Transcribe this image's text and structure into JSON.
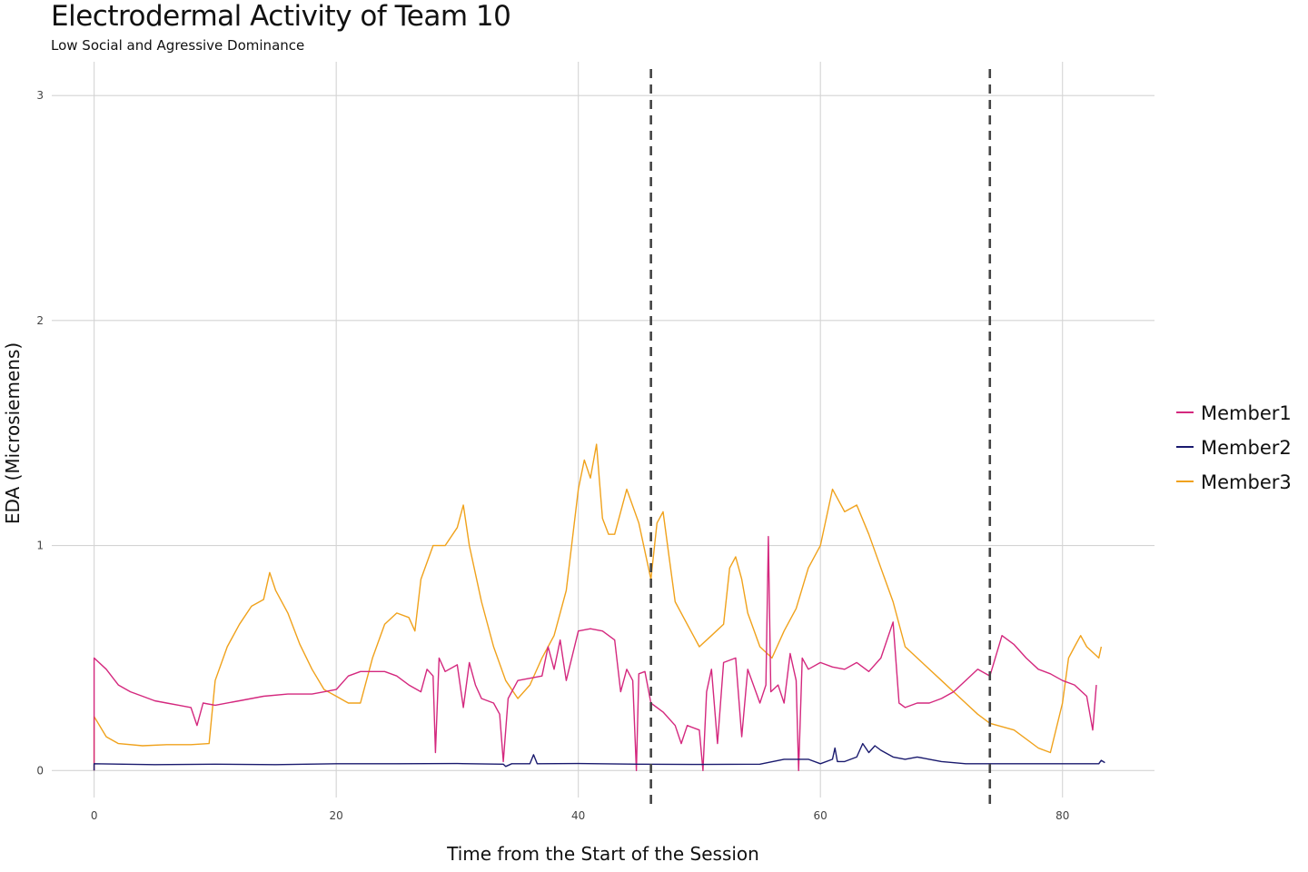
{
  "chart_data": {
    "type": "line",
    "title": "Electrodermal Activity of Team 10",
    "subtitle": "Low Social and Agressive Dominance",
    "xlabel": "Time from the Start of the Session",
    "ylabel": "EDA (Microsiemens)",
    "xlim": [
      -3.5,
      87.6
    ],
    "ylim": [
      -0.12,
      3.15
    ],
    "x_ticks": [
      0,
      20,
      40,
      60,
      80
    ],
    "y_ticks": [
      0,
      1,
      2,
      3
    ],
    "grid": true,
    "legend_position": "right",
    "vlines": [
      46,
      74
    ],
    "series": [
      {
        "name": "Member1",
        "color": "#d4287e",
        "points": [
          [
            0,
            0
          ],
          [
            0,
            0.5
          ],
          [
            1,
            0.45
          ],
          [
            2,
            0.38
          ],
          [
            3,
            0.35
          ],
          [
            4,
            0.33
          ],
          [
            5,
            0.31
          ],
          [
            6,
            0.3
          ],
          [
            7,
            0.29
          ],
          [
            8,
            0.28
          ],
          [
            8.5,
            0.2
          ],
          [
            9,
            0.3
          ],
          [
            10,
            0.29
          ],
          [
            12,
            0.31
          ],
          [
            14,
            0.33
          ],
          [
            16,
            0.34
          ],
          [
            18,
            0.34
          ],
          [
            20,
            0.36
          ],
          [
            21,
            0.42
          ],
          [
            22,
            0.44
          ],
          [
            24,
            0.44
          ],
          [
            25,
            0.42
          ],
          [
            25.5,
            0.4
          ],
          [
            26,
            0.38
          ],
          [
            27,
            0.35
          ],
          [
            27.5,
            0.45
          ],
          [
            28,
            0.42
          ],
          [
            28.2,
            0.08
          ],
          [
            28.5,
            0.5
          ],
          [
            29,
            0.44
          ],
          [
            30,
            0.47
          ],
          [
            30.5,
            0.28
          ],
          [
            31,
            0.48
          ],
          [
            31.5,
            0.38
          ],
          [
            32,
            0.32
          ],
          [
            33,
            0.3
          ],
          [
            33.5,
            0.25
          ],
          [
            33.8,
            0.04
          ],
          [
            34.2,
            0.32
          ],
          [
            35,
            0.4
          ],
          [
            36,
            0.41
          ],
          [
            37,
            0.42
          ],
          [
            37.5,
            0.55
          ],
          [
            38,
            0.45
          ],
          [
            38.5,
            0.58
          ],
          [
            39,
            0.4
          ],
          [
            40,
            0.62
          ],
          [
            41,
            0.63
          ],
          [
            42,
            0.62
          ],
          [
            43,
            0.58
          ],
          [
            43.5,
            0.35
          ],
          [
            44,
            0.45
          ],
          [
            44.5,
            0.4
          ],
          [
            44.8,
            0.0
          ],
          [
            45,
            0.43
          ],
          [
            45.5,
            0.44
          ],
          [
            46,
            0.3
          ],
          [
            47,
            0.26
          ],
          [
            48,
            0.2
          ],
          [
            48.5,
            0.12
          ],
          [
            49,
            0.2
          ],
          [
            50,
            0.18
          ],
          [
            50.3,
            0.0
          ],
          [
            50.6,
            0.35
          ],
          [
            51,
            0.45
          ],
          [
            51.5,
            0.12
          ],
          [
            52,
            0.48
          ],
          [
            53,
            0.5
          ],
          [
            53.5,
            0.15
          ],
          [
            54,
            0.45
          ],
          [
            55,
            0.3
          ],
          [
            55.5,
            0.38
          ],
          [
            55.7,
            1.04
          ],
          [
            55.9,
            0.35
          ],
          [
            56.5,
            0.38
          ],
          [
            57,
            0.3
          ],
          [
            57.5,
            0.52
          ],
          [
            58,
            0.4
          ],
          [
            58.2,
            0.0
          ],
          [
            58.5,
            0.5
          ],
          [
            59,
            0.45
          ],
          [
            60,
            0.48
          ],
          [
            61,
            0.46
          ],
          [
            62,
            0.45
          ],
          [
            63,
            0.48
          ],
          [
            64,
            0.44
          ],
          [
            65,
            0.5
          ],
          [
            66,
            0.66
          ],
          [
            66.5,
            0.3
          ],
          [
            67,
            0.28
          ],
          [
            68,
            0.3
          ],
          [
            69,
            0.3
          ],
          [
            70,
            0.32
          ],
          [
            71,
            0.35
          ],
          [
            72,
            0.4
          ],
          [
            73,
            0.45
          ],
          [
            74,
            0.42
          ],
          [
            75,
            0.6
          ],
          [
            76,
            0.56
          ],
          [
            77,
            0.5
          ],
          [
            78,
            0.45
          ],
          [
            79,
            0.43
          ],
          [
            80,
            0.4
          ],
          [
            81,
            0.38
          ],
          [
            82,
            0.33
          ],
          [
            82.5,
            0.18
          ],
          [
            82.8,
            0.38
          ]
        ]
      },
      {
        "name": "Member2",
        "color": "#1a1a6e",
        "points": [
          [
            0,
            0
          ],
          [
            0,
            0.03
          ],
          [
            5,
            0.026
          ],
          [
            10,
            0.028
          ],
          [
            15,
            0.026
          ],
          [
            20,
            0.03
          ],
          [
            25,
            0.03
          ],
          [
            30,
            0.031
          ],
          [
            33.8,
            0.028
          ],
          [
            34,
            0.018
          ],
          [
            34.5,
            0.03
          ],
          [
            36,
            0.03
          ],
          [
            36.3,
            0.07
          ],
          [
            36.6,
            0.03
          ],
          [
            40,
            0.031
          ],
          [
            45,
            0.028
          ],
          [
            50,
            0.027
          ],
          [
            55,
            0.028
          ],
          [
            57,
            0.05
          ],
          [
            59,
            0.05
          ],
          [
            60,
            0.03
          ],
          [
            61,
            0.05
          ],
          [
            61.2,
            0.1
          ],
          [
            61.4,
            0.04
          ],
          [
            62,
            0.04
          ],
          [
            63,
            0.06
          ],
          [
            63.5,
            0.12
          ],
          [
            64,
            0.08
          ],
          [
            64.5,
            0.11
          ],
          [
            65,
            0.09
          ],
          [
            66,
            0.06
          ],
          [
            67,
            0.05
          ],
          [
            68,
            0.06
          ],
          [
            69,
            0.05
          ],
          [
            70,
            0.04
          ],
          [
            72,
            0.03
          ],
          [
            75,
            0.03
          ],
          [
            80,
            0.03
          ],
          [
            83,
            0.03
          ],
          [
            83.2,
            0.045
          ],
          [
            83.5,
            0.035
          ]
        ]
      },
      {
        "name": "Member3",
        "color": "#f0a21c",
        "points": [
          [
            0,
            0
          ],
          [
            0,
            0.24
          ],
          [
            1,
            0.15
          ],
          [
            2,
            0.12
          ],
          [
            4,
            0.11
          ],
          [
            6,
            0.115
          ],
          [
            8,
            0.115
          ],
          [
            9.5,
            0.12
          ],
          [
            10,
            0.4
          ],
          [
            11,
            0.55
          ],
          [
            12,
            0.65
          ],
          [
            13,
            0.73
          ],
          [
            14,
            0.76
          ],
          [
            14.5,
            0.88
          ],
          [
            15,
            0.8
          ],
          [
            16,
            0.7
          ],
          [
            17,
            0.56
          ],
          [
            18,
            0.45
          ],
          [
            19,
            0.36
          ],
          [
            20,
            0.33
          ],
          [
            21,
            0.3
          ],
          [
            22,
            0.3
          ],
          [
            23,
            0.5
          ],
          [
            24,
            0.65
          ],
          [
            25,
            0.7
          ],
          [
            26,
            0.68
          ],
          [
            26.5,
            0.62
          ],
          [
            27,
            0.85
          ],
          [
            28,
            1.0
          ],
          [
            29,
            1.0
          ],
          [
            30,
            1.08
          ],
          [
            30.5,
            1.18
          ],
          [
            31,
            1.0
          ],
          [
            32,
            0.75
          ],
          [
            33,
            0.55
          ],
          [
            34,
            0.4
          ],
          [
            35,
            0.32
          ],
          [
            36,
            0.38
          ],
          [
            37,
            0.5
          ],
          [
            38,
            0.6
          ],
          [
            39,
            0.8
          ],
          [
            40,
            1.25
          ],
          [
            40.5,
            1.38
          ],
          [
            41,
            1.3
          ],
          [
            41.5,
            1.45
          ],
          [
            42,
            1.12
          ],
          [
            42.5,
            1.05
          ],
          [
            43,
            1.05
          ],
          [
            44,
            1.25
          ],
          [
            45,
            1.1
          ],
          [
            46,
            0.85
          ],
          [
            46.5,
            1.1
          ],
          [
            47,
            1.15
          ],
          [
            47.5,
            0.95
          ],
          [
            48,
            0.75
          ],
          [
            49,
            0.65
          ],
          [
            50,
            0.55
          ],
          [
            51,
            0.6
          ],
          [
            52,
            0.65
          ],
          [
            52.5,
            0.9
          ],
          [
            53,
            0.95
          ],
          [
            53.5,
            0.85
          ],
          [
            54,
            0.7
          ],
          [
            55,
            0.55
          ],
          [
            56,
            0.5
          ],
          [
            57,
            0.62
          ],
          [
            58,
            0.72
          ],
          [
            59,
            0.9
          ],
          [
            60,
            1.0
          ],
          [
            61,
            1.25
          ],
          [
            62,
            1.15
          ],
          [
            63,
            1.18
          ],
          [
            64,
            1.05
          ],
          [
            65,
            0.9
          ],
          [
            66,
            0.75
          ],
          [
            67,
            0.55
          ],
          [
            68,
            0.5
          ],
          [
            70,
            0.4
          ],
          [
            72,
            0.3
          ],
          [
            73,
            0.25
          ],
          [
            74,
            0.21
          ],
          [
            76,
            0.18
          ],
          [
            78,
            0.1
          ],
          [
            79,
            0.08
          ],
          [
            80,
            0.3
          ],
          [
            80.5,
            0.5
          ],
          [
            81,
            0.55
          ],
          [
            81.5,
            0.6
          ],
          [
            82,
            0.55
          ],
          [
            83,
            0.5
          ],
          [
            83.2,
            0.55
          ]
        ]
      }
    ]
  }
}
